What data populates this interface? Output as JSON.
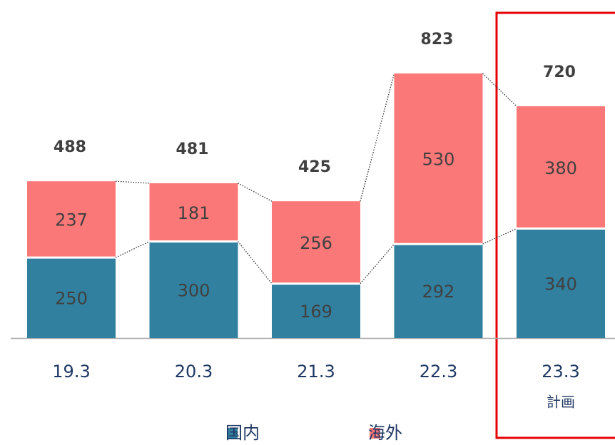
{
  "chart_data": {
    "type": "stacked_bar",
    "categories": [
      "19.3",
      "20.3",
      "21.3",
      "22.3",
      "23.3"
    ],
    "series": [
      {
        "name": "国内",
        "color": "#31809f",
        "values": [
          250,
          300,
          169,
          292,
          340
        ]
      },
      {
        "name": "海外",
        "color": "#fb7878",
        "values": [
          237,
          181,
          256,
          530,
          380
        ]
      }
    ],
    "totals": [
      488,
      481,
      425,
      823,
      720
    ],
    "annotations": [
      {
        "category_index": 4,
        "text": "計画"
      }
    ],
    "legend": "bottom"
  }
}
